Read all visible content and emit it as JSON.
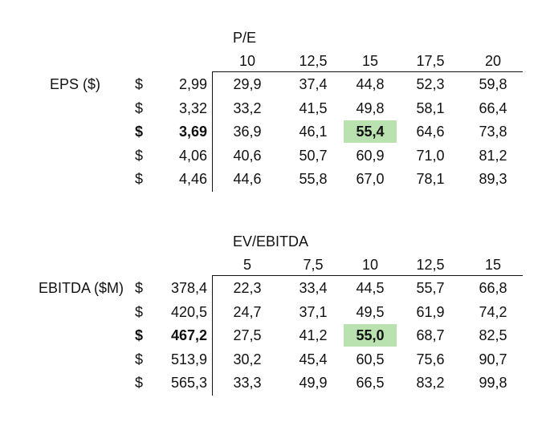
{
  "table1": {
    "col_title": "P/E",
    "row_title": "EPS ($)",
    "col_headers": [
      "10",
      "12,5",
      "15",
      "17,5",
      "20"
    ],
    "currency": "$",
    "highlight_row": 2,
    "highlight_col": 2,
    "highlight_color": "#b9e2b0",
    "rows": [
      {
        "value": "2,99",
        "cells": [
          "29,9",
          "37,4",
          "44,8",
          "52,3",
          "59,8"
        ]
      },
      {
        "value": "3,32",
        "cells": [
          "33,2",
          "41,5",
          "49,8",
          "58,1",
          "66,4"
        ]
      },
      {
        "value": "3,69",
        "cells": [
          "36,9",
          "46,1",
          "55,4",
          "64,6",
          "73,8"
        ]
      },
      {
        "value": "4,06",
        "cells": [
          "40,6",
          "50,7",
          "60,9",
          "71,0",
          "81,2"
        ]
      },
      {
        "value": "4,46",
        "cells": [
          "44,6",
          "55,8",
          "67,0",
          "78,1",
          "89,3"
        ]
      }
    ]
  },
  "table2": {
    "col_title": "EV/EBITDA",
    "row_title": "EBITDA ($M)",
    "col_headers": [
      "5",
      "7,5",
      "10",
      "12,5",
      "15"
    ],
    "currency": "$",
    "highlight_row": 2,
    "highlight_col": 2,
    "highlight_color": "#b9e2b0",
    "rows": [
      {
        "value": "378,4",
        "cells": [
          "22,3",
          "33,4",
          "44,5",
          "55,7",
          "66,8"
        ]
      },
      {
        "value": "420,5",
        "cells": [
          "24,7",
          "37,1",
          "49,5",
          "61,9",
          "74,2"
        ]
      },
      {
        "value": "467,2",
        "cells": [
          "27,5",
          "41,2",
          "55,0",
          "68,7",
          "82,5"
        ]
      },
      {
        "value": "513,9",
        "cells": [
          "30,2",
          "45,4",
          "60,5",
          "75,6",
          "90,7"
        ]
      },
      {
        "value": "565,3",
        "cells": [
          "33,3",
          "49,9",
          "66,5",
          "83,2",
          "99,8"
        ]
      }
    ]
  }
}
